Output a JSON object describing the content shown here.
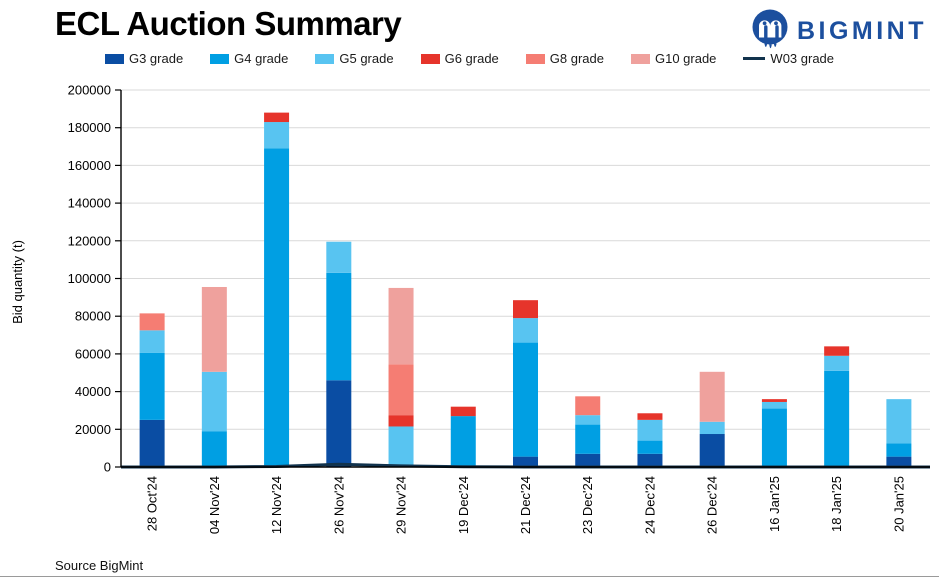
{
  "header": {
    "title": "ECL Auction Summary",
    "brand": "BIGMINT"
  },
  "footer": {
    "source": "Source BigMint"
  },
  "colors": {
    "brand_navy": "#1c4f9e",
    "grid": "#d9d9d9",
    "axis": "#000000",
    "divider": "#9a9a9a"
  },
  "chart_data": {
    "type": "bar",
    "stacked": true,
    "title": "ECL Auction Summary",
    "xlabel": "",
    "ylabel": "Bid quantity (t)",
    "ylim": [
      0,
      200000
    ],
    "yticks": [
      0,
      20000,
      40000,
      60000,
      80000,
      100000,
      120000,
      140000,
      160000,
      180000,
      200000
    ],
    "grid": true,
    "legend_position": "top",
    "categories": [
      "28 Oct'24",
      "04 Nov'24",
      "12 Nov'24",
      "26 Nov'24",
      "29 Nov'24",
      "19 Dec'24",
      "21 Dec'24",
      "23 Dec'24",
      "24 Dec'24",
      "26 Dec'24",
      "16 Jan'25",
      "18 Jan'25",
      "20 Jan'25"
    ],
    "series": [
      {
        "name": "G3 grade",
        "type": "bar",
        "color": "#0a4da3",
        "values": [
          25000,
          0,
          0,
          46000,
          0,
          0,
          5500,
          7000,
          7000,
          17500,
          0,
          0,
          5500
        ]
      },
      {
        "name": "G4 grade",
        "type": "bar",
        "color": "#009fe3",
        "values": [
          35500,
          19000,
          169000,
          57000,
          0,
          27000,
          60500,
          15500,
          7000,
          0,
          31000,
          51000,
          7000
        ]
      },
      {
        "name": "G5 grade",
        "type": "bar",
        "color": "#58c4f1",
        "values": [
          12000,
          31500,
          14000,
          16500,
          21500,
          0,
          13000,
          5000,
          11000,
          6500,
          3500,
          8000,
          23500
        ]
      },
      {
        "name": "G6 grade",
        "type": "bar",
        "color": "#e6342b",
        "values": [
          0,
          0,
          5000,
          0,
          6000,
          5000,
          9500,
          0,
          3500,
          0,
          1500,
          5000,
          0
        ]
      },
      {
        "name": "G8 grade",
        "type": "bar",
        "color": "#f57d73",
        "values": [
          9000,
          0,
          0,
          0,
          27000,
          0,
          0,
          10000,
          0,
          0,
          0,
          0,
          0
        ]
      },
      {
        "name": "G10 grade",
        "type": "bar",
        "color": "#efa19d",
        "values": [
          0,
          45000,
          0,
          0,
          40500,
          0,
          0,
          0,
          0,
          26500,
          0,
          0,
          0
        ]
      },
      {
        "name": "W03 grade",
        "type": "line",
        "color": "#12334d",
        "values": [
          0,
          0,
          250,
          1500,
          600,
          150,
          0,
          0,
          0,
          0,
          0,
          0,
          0
        ]
      }
    ]
  }
}
